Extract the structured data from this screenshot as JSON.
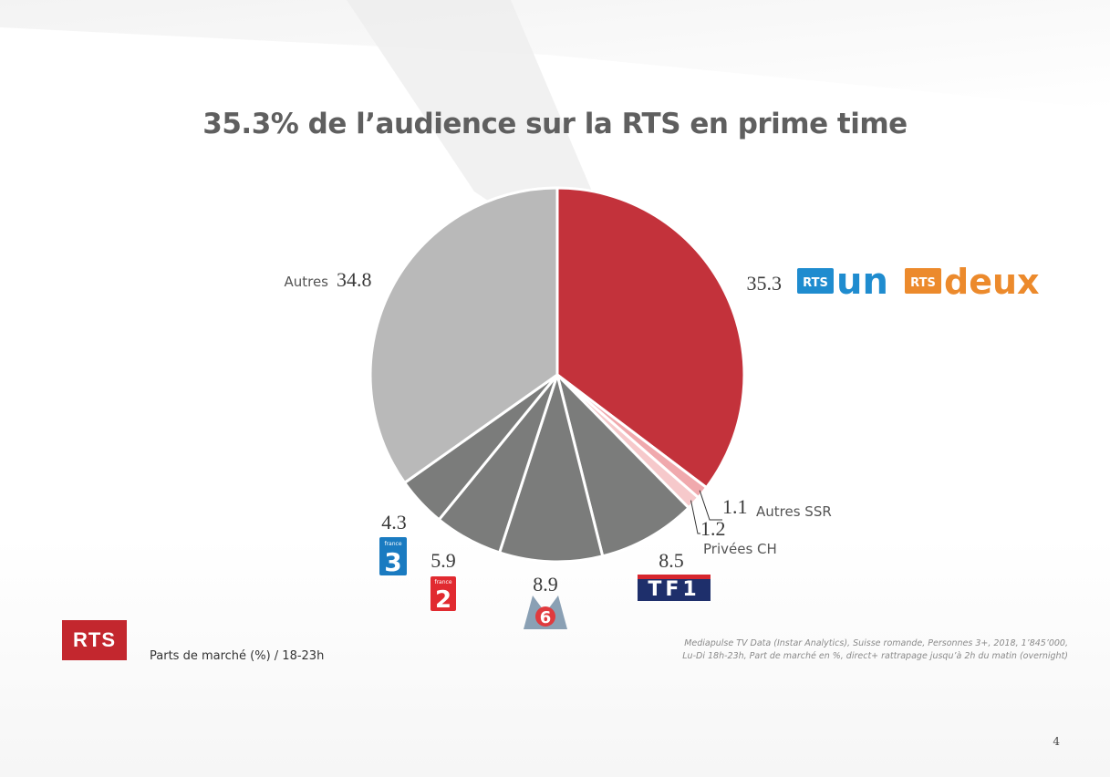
{
  "title": "35.3% de l’audience sur la RTS en prime time",
  "footer_label": "Parts de marché (%) / 18-23h",
  "source_lines": [
    "Mediapulse TV Data (Instar Analytics), Suisse romande, Personnes 3+, 2018, 1’845’000,",
    "Lu-Di 18h-23h, Part de marché en %, direct+ rattrapage jusqu’à 2h du matin (overnight)"
  ],
  "page_number": "4",
  "logos": {
    "rts": "RTS",
    "rts_un": {
      "badge": "RTS",
      "word": "un"
    },
    "rts_deux": {
      "badge": "RTS",
      "word": "deux"
    },
    "tf1": "TF1",
    "france2": {
      "word": "france",
      "digit": "2"
    },
    "france3": {
      "word": "france",
      "digit": "3"
    },
    "m6": "6"
  },
  "colors": {
    "rts": "#c3323b",
    "autres_ssr": "#f0a9ad",
    "privees_ch": "#f6c9cb",
    "french_channels": "#7b7c7b",
    "autres": "#b9b9b9",
    "title": "#5f5f5f",
    "rts_logo": "#c3272e",
    "rts_un_blue": "#1f8ccf",
    "rts_deux_orange": "#ec8a2c"
  },
  "chart_data": {
    "type": "pie",
    "title": "35.3% de l’audience sur la RTS en prime time",
    "start": "12 o'clock",
    "direction": "clockwise",
    "slices": [
      {
        "key": "rts",
        "label": "",
        "value": 35.3,
        "value_label": "35.3",
        "logos": [
          "RTS un",
          "RTS deux"
        ]
      },
      {
        "key": "autres_ssr",
        "label": "Autres SSR",
        "value": 1.1,
        "value_label": "1.1"
      },
      {
        "key": "privees_ch",
        "label": "Privées CH",
        "value": 1.2,
        "value_label": "1.2"
      },
      {
        "key": "tf1",
        "label": "",
        "value": 8.5,
        "value_label": "8.5",
        "logos": [
          "TF1"
        ]
      },
      {
        "key": "m6",
        "label": "",
        "value": 8.9,
        "value_label": "8.9",
        "logos": [
          "M6"
        ]
      },
      {
        "key": "france2",
        "label": "",
        "value": 5.9,
        "value_label": "5.9",
        "logos": [
          "France 2"
        ]
      },
      {
        "key": "france3",
        "label": "",
        "value": 4.3,
        "value_label": "4.3",
        "logos": [
          "France 3"
        ]
      },
      {
        "key": "autres",
        "label": "Autres",
        "value": 34.8,
        "value_label": "34.8"
      }
    ]
  }
}
